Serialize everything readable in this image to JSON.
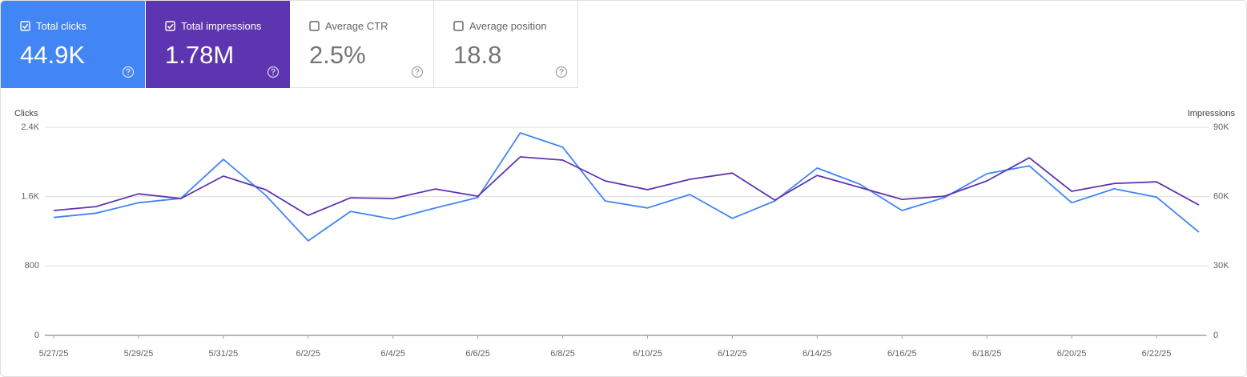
{
  "cards": [
    {
      "label": "Total clicks",
      "value": "44.9K",
      "checked": true,
      "color": "#4285f4"
    },
    {
      "label": "Total impressions",
      "value": "1.78M",
      "checked": true,
      "color": "#5e35b1"
    },
    {
      "label": "Average CTR",
      "value": "2.5%",
      "checked": false,
      "color": "#ffffff"
    },
    {
      "label": "Average position",
      "value": "18.8",
      "checked": false,
      "color": "#ffffff"
    }
  ],
  "chart_data": {
    "type": "line",
    "y_label": "Clicks",
    "y2_label": "Impressions",
    "categories": [
      "5/27/25",
      null,
      "5/29/25",
      null,
      "5/31/25",
      null,
      "6/2/25",
      null,
      "6/4/25",
      null,
      "6/6/25",
      null,
      "6/8/25",
      null,
      "6/10/25",
      null,
      "6/12/25",
      null,
      "6/14/25",
      null,
      "6/16/25",
      null,
      "6/18/25",
      null,
      "6/20/25",
      null,
      "6/22/25",
      null
    ],
    "series": [
      {
        "color": "#4285f4",
        "values": [
          1360,
          1410,
          1530,
          1580,
          2030,
          1615,
          1090,
          1430,
          1340,
          1470,
          1590,
          2335,
          2170,
          1550,
          1470,
          1625,
          1350,
          1550,
          1930,
          1745,
          1440,
          1590,
          1865,
          1955,
          1530,
          1690,
          1595,
          1190
        ]
      },
      {
        "color": "#5e35b1",
        "axis": "y2",
        "values": [
          54000,
          55700,
          61200,
          59200,
          68900,
          63000,
          51900,
          59500,
          59200,
          63300,
          60200,
          77200,
          75800,
          66800,
          63000,
          67500,
          70200,
          58500,
          69200,
          64000,
          58800,
          60200,
          66800,
          76800,
          62300,
          65700,
          66400,
          56400
        ]
      }
    ],
    "ylim": [
      0,
      2400
    ],
    "yticks": [
      0,
      800,
      {
        "value": 1600,
        "label": "1.6K"
      },
      {
        "value": 2400,
        "label": "2.4K"
      }
    ],
    "y2lim": [
      0,
      90000
    ],
    "y2ticks": [
      0,
      {
        "value": 30000,
        "label": "30K"
      },
      {
        "value": 60000,
        "label": "60K"
      },
      {
        "value": 90000,
        "label": "90K"
      }
    ],
    "grid": true
  }
}
